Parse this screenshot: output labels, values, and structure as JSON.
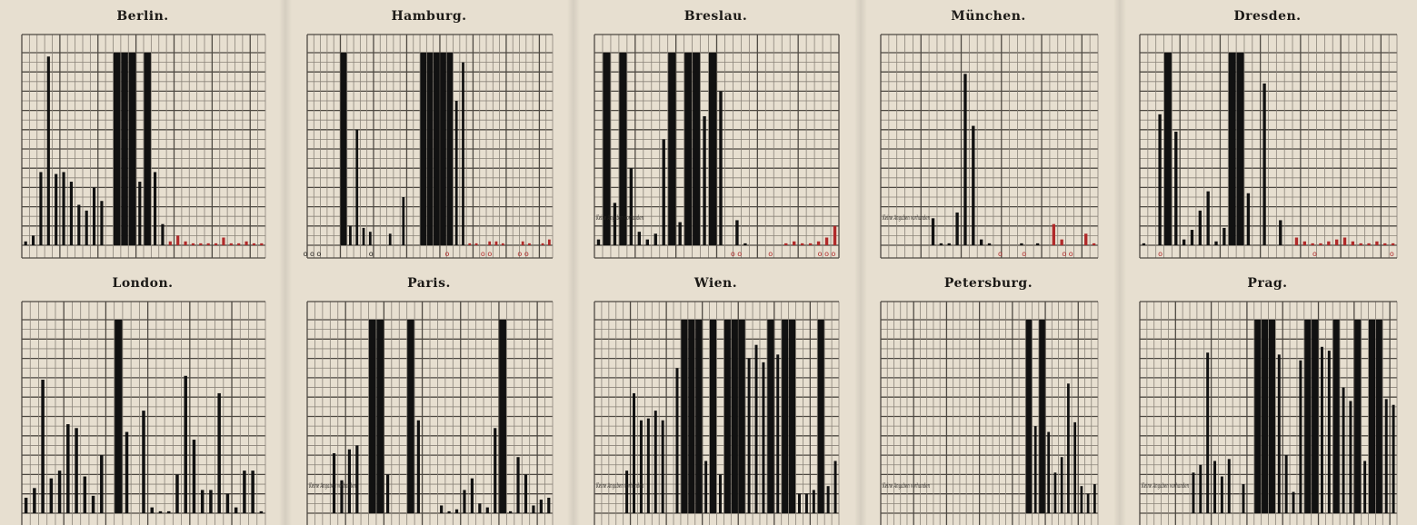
{
  "colors": {
    "paper": "#e7dfd0",
    "bar": "#111111",
    "bar_highlight": "#b02a2a",
    "grid": "#8a8379"
  },
  "chart_data": [
    {
      "type": "bar",
      "title": "Berlin.",
      "ylim": [
        0,
        100
      ],
      "values": [
        2,
        5,
        38,
        98,
        37,
        38,
        33,
        21,
        18,
        30,
        23,
        0,
        100,
        100,
        100,
        33,
        100,
        38,
        11,
        2,
        5,
        2,
        1,
        1,
        1,
        1,
        4,
        1,
        1,
        2,
        1,
        1
      ],
      "highlight_from": 19,
      "note": "",
      "zero_marks": []
    },
    {
      "type": "bar",
      "title": "Hamburg.",
      "ylim": [
        0,
        100
      ],
      "values": [
        0,
        0,
        0,
        0,
        0,
        100,
        10,
        60,
        9,
        7,
        0,
        0,
        6,
        0,
        25,
        0,
        0,
        100,
        100,
        100,
        100,
        100,
        75,
        95,
        1,
        1,
        0,
        2,
        2,
        1,
        0,
        0,
        2,
        1,
        0,
        1,
        3
      ],
      "highlight_from": 24,
      "note": "",
      "zero_marks": [
        {
          "label": "o o o",
          "pos": 0.02,
          "red": false
        },
        {
          "label": "o",
          "pos": 0.26,
          "red": false
        },
        {
          "label": "o",
          "pos": 0.57,
          "red": true
        },
        {
          "label": "o o",
          "pos": 0.73,
          "red": true
        },
        {
          "label": "o o",
          "pos": 0.88,
          "red": true
        }
      ]
    },
    {
      "type": "bar",
      "title": "Breslau.",
      "ylim": [
        0,
        100
      ],
      "values": [
        3,
        100,
        22,
        100,
        40,
        7,
        3,
        6,
        55,
        100,
        12,
        100,
        100,
        67,
        100,
        80,
        0,
        13,
        1,
        0,
        0,
        0,
        0,
        1,
        2,
        1,
        1,
        2,
        4,
        10
      ],
      "highlight_from": 22,
      "note": "Keine Angaben vorhanden",
      "zero_marks": [
        {
          "label": "o o",
          "pos": 0.58,
          "red": true
        },
        {
          "label": "o",
          "pos": 0.72,
          "red": true
        },
        {
          "label": "o o o",
          "pos": 0.95,
          "red": true
        }
      ]
    },
    {
      "type": "bar",
      "title": "München.",
      "ylim": [
        0,
        100
      ],
      "values": [
        0,
        0,
        0,
        0,
        0,
        0,
        14,
        1,
        1,
        17,
        89,
        62,
        3,
        1,
        0,
        0,
        0,
        1,
        0,
        1,
        0,
        11,
        3,
        0,
        0,
        6,
        1
      ],
      "highlight_from": 21,
      "note": "Keine Angaben vorhanden",
      "zero_marks": [
        {
          "label": "o",
          "pos": 0.55,
          "red": true
        },
        {
          "label": "o",
          "pos": 0.66,
          "red": true
        },
        {
          "label": "o o",
          "pos": 0.86,
          "red": true
        }
      ]
    },
    {
      "type": "bar",
      "title": "Dresden.",
      "ylim": [
        0,
        100
      ],
      "values": [
        1,
        0,
        68,
        100,
        59,
        3,
        8,
        18,
        28,
        2,
        9,
        100,
        100,
        27,
        0,
        84,
        0,
        13,
        0,
        4,
        2,
        1,
        1,
        2,
        3,
        4,
        2,
        1,
        1,
        2,
        1,
        1
      ],
      "highlight_from": 19,
      "note": "",
      "zero_marks": [
        {
          "label": "o",
          "pos": 0.08,
          "red": true
        },
        {
          "label": "o",
          "pos": 0.68,
          "red": true
        },
        {
          "label": "o",
          "pos": 0.98,
          "red": true
        }
      ]
    },
    {
      "type": "bar",
      "title": "London.",
      "ylim": [
        0,
        100
      ],
      "values": [
        8,
        13,
        69,
        18,
        22,
        46,
        44,
        19,
        9,
        30,
        0,
        100,
        42,
        0,
        53,
        3,
        1,
        1,
        20,
        71,
        38,
        12,
        12,
        62,
        10,
        3,
        22,
        22,
        1
      ],
      "highlight_from": 99,
      "note": "",
      "zero_marks": []
    },
    {
      "type": "bar",
      "title": "Paris.",
      "ylim": [
        0,
        100
      ],
      "values": [
        0,
        0,
        0,
        31,
        17,
        33,
        35,
        0,
        100,
        100,
        20,
        0,
        0,
        100,
        48,
        0,
        0,
        4,
        1,
        2,
        12,
        18,
        5,
        3,
        44,
        100,
        1,
        29,
        20,
        4,
        7,
        8
      ],
      "highlight_from": 99,
      "note": "Keine Angaben vorhanden",
      "zero_marks": []
    },
    {
      "type": "bar",
      "title": "Wien.",
      "ylim": [
        0,
        100
      ],
      "values": [
        0,
        0,
        0,
        0,
        22,
        62,
        48,
        49,
        53,
        48,
        0,
        75,
        100,
        100,
        100,
        27,
        100,
        20,
        100,
        100,
        100,
        80,
        87,
        78,
        100,
        82,
        100,
        100,
        10,
        10,
        12,
        100,
        14,
        27
      ],
      "highlight_from": 99,
      "note": "Keine Angaben vorhanden",
      "zero_marks": []
    },
    {
      "type": "bar",
      "title": "Petersburg.",
      "ylim": [
        0,
        100
      ],
      "values": [
        0,
        0,
        0,
        0,
        0,
        0,
        0,
        0,
        0,
        0,
        0,
        0,
        0,
        0,
        0,
        0,
        0,
        0,
        0,
        0,
        0,
        0,
        100,
        45,
        100,
        42,
        21,
        29,
        67,
        47,
        14,
        10,
        15
      ],
      "highlight_from": 99,
      "note": "Keine Angaben vorhanden",
      "zero_marks": []
    },
    {
      "type": "bar",
      "title": "Prag.",
      "ylim": [
        0,
        100
      ],
      "values": [
        0,
        0,
        0,
        0,
        0,
        0,
        0,
        21,
        25,
        83,
        27,
        19,
        28,
        0,
        15,
        0,
        100,
        100,
        100,
        82,
        30,
        11,
        79,
        100,
        100,
        86,
        84,
        100,
        65,
        58,
        100,
        27,
        100,
        100,
        59,
        56
      ],
      "highlight_from": 99,
      "note": "Keine Angaben vorhanden",
      "zero_marks": []
    }
  ]
}
